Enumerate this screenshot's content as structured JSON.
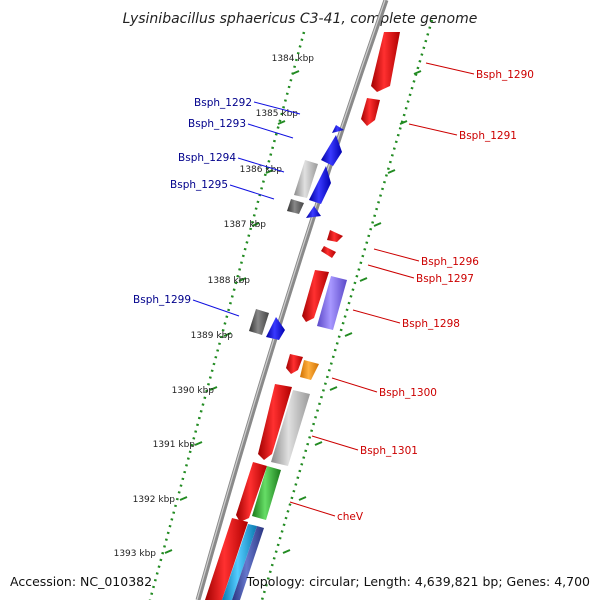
{
  "title": "Lysinibacillus sphaericus C3-41, complete genome",
  "footer": {
    "accession": "Accession: NC_010382",
    "summary": "Topology: circular; Length: 4,639,821 bp; Genes: 4,700"
  },
  "colors": {
    "plus_strand": "#e00000",
    "minus_strand": "#1010e0",
    "plus_label": "#cc0000",
    "minus_label": "#00008b",
    "ruler": "#228b22",
    "tick_label": "#222222",
    "backbone": "#888888",
    "orange": "#ff9900",
    "purple": "#7b68ee",
    "gray": "#b0b0b0",
    "dark_gray": "#555555",
    "green": "#33aa33",
    "cyan": "#22aadd",
    "slate": "#4455aa"
  },
  "ticks": [
    "1384 kbp",
    "1385 kbp",
    "1386 kbp",
    "1387 kbp",
    "1388 kbp",
    "1389 kbp",
    "1390 kbp",
    "1391 kbp",
    "1392 kbp",
    "1393 kbp"
  ],
  "labels": {
    "left": [
      "Bsph_1292",
      "Bsph_1293",
      "Bsph_1294",
      "Bsph_1295",
      "Bsph_1299"
    ],
    "right": [
      "Bsph_1290",
      "Bsph_1291",
      "Bsph_1296",
      "Bsph_1297",
      "Bsph_1298",
      "Bsph_1300",
      "Bsph_1301",
      "cheV"
    ]
  }
}
